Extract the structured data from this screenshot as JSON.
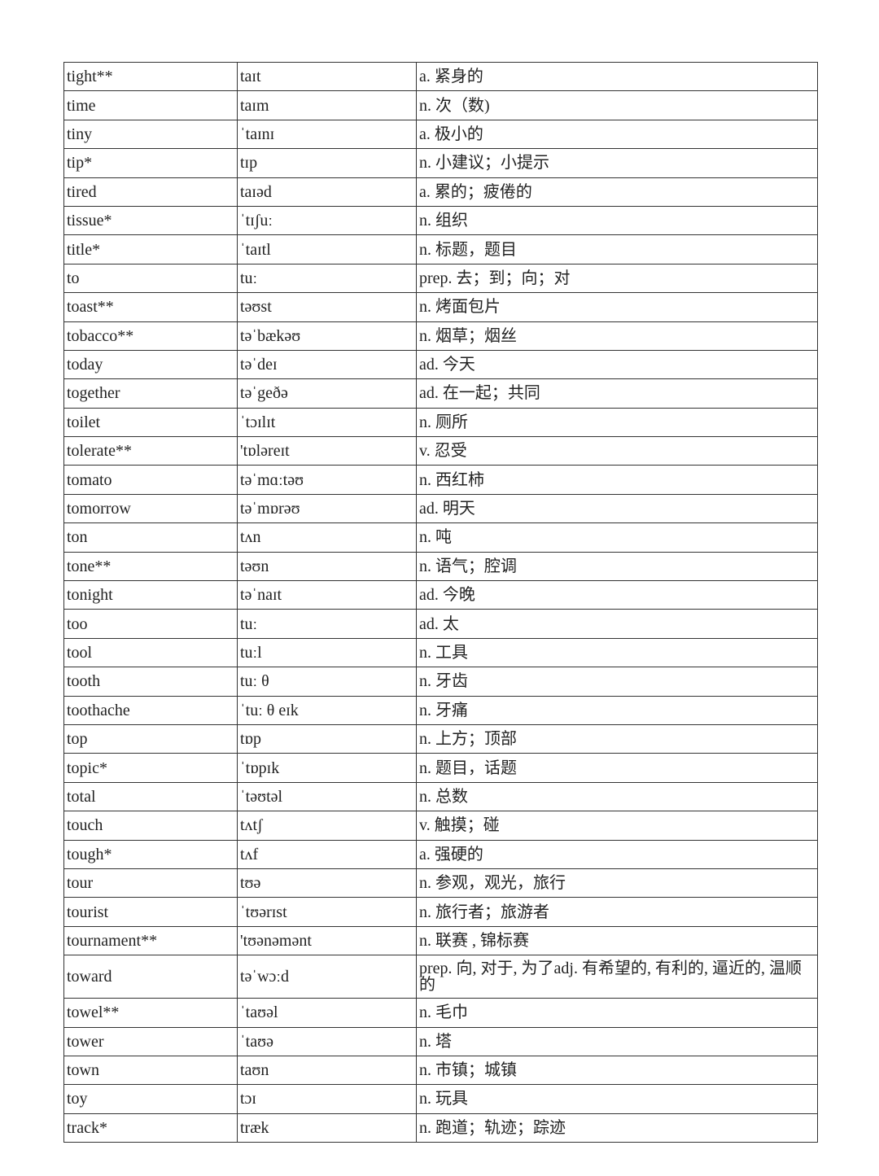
{
  "table": {
    "rows": [
      [
        "tight**",
        "taɪt",
        "a. 紧身的"
      ],
      [
        "time",
        "taɪm",
        "n. 次（数)"
      ],
      [
        "tiny",
        "ˈtaɪnɪ",
        "a. 极小的"
      ],
      [
        "tip*",
        "tɪp",
        "n. 小建议；小提示"
      ],
      [
        "tired",
        "taɪəd",
        "a. 累的；疲倦的"
      ],
      [
        "tissue*",
        "ˈtɪʃuː",
        "n. 组织"
      ],
      [
        "title*",
        "ˈtaɪtl",
        "n. 标题，题目"
      ],
      [
        "to",
        "tuː",
        "prep. 去；到；向；对"
      ],
      [
        "toast**",
        "təʊst",
        "n. 烤面包片"
      ],
      [
        "tobacco**",
        "təˈbækəʊ",
        "n. 烟草；烟丝"
      ],
      [
        "today",
        "təˈdeɪ",
        "ad. 今天"
      ],
      [
        "together",
        "təˈgeðə",
        "ad. 在一起；共同"
      ],
      [
        "toilet",
        "ˈtɔɪlɪt",
        "n. 厕所"
      ],
      [
        "tolerate**",
        "'tɒləreɪt",
        "v. 忍受"
      ],
      [
        "tomato",
        "təˈmɑːtəʊ",
        "n. 西红柿"
      ],
      [
        "tomorrow",
        "təˈmɒrəʊ",
        "ad. 明天"
      ],
      [
        "ton",
        "tʌn",
        "n. 吨"
      ],
      [
        "tone**",
        "təʊn",
        "n. 语气；腔调"
      ],
      [
        "tonight",
        "təˈnaɪt",
        "ad. 今晚"
      ],
      [
        "too",
        "tuː",
        "ad. 太"
      ],
      [
        "tool",
        "tuːl",
        "n. 工具"
      ],
      [
        "tooth",
        "tuː θ",
        "n. 牙齿"
      ],
      [
        "toothache",
        "ˈtuː θ eɪk",
        "n. 牙痛"
      ],
      [
        "top",
        "tɒp",
        "n. 上方；顶部"
      ],
      [
        "topic*",
        "ˈtɒpɪk",
        "n. 题目，话题"
      ],
      [
        "total",
        "ˈtəʊtəl",
        "n. 总数"
      ],
      [
        "touch",
        "tʌtʃ",
        "v. 触摸；碰"
      ],
      [
        "tough*",
        "tʌf",
        "a. 强硬的"
      ],
      [
        "tour",
        "tʊə",
        "n. 参观，观光，旅行"
      ],
      [
        "tourist",
        "ˈtʊərɪst",
        "n. 旅行者；旅游者"
      ],
      [
        "tournament**",
        "'tʊənəmənt",
        "n. 联赛 , 锦标赛"
      ],
      [
        "toward",
        "təˈwɔːd",
        "prep. 向, 对于, 为了adj. 有希望的, 有利的, 逼近的, 温顺的"
      ],
      [
        "towel**",
        "ˈtaʊəl",
        "n. 毛巾"
      ],
      [
        "tower",
        "ˈtaʊə",
        "n. 塔"
      ],
      [
        "town",
        "taʊn",
        "n. 市镇；城镇"
      ],
      [
        "toy",
        "tɔɪ",
        "n. 玩具"
      ],
      [
        "track*",
        "træk",
        "n. 跑道；轨迹；踪迹"
      ]
    ]
  }
}
